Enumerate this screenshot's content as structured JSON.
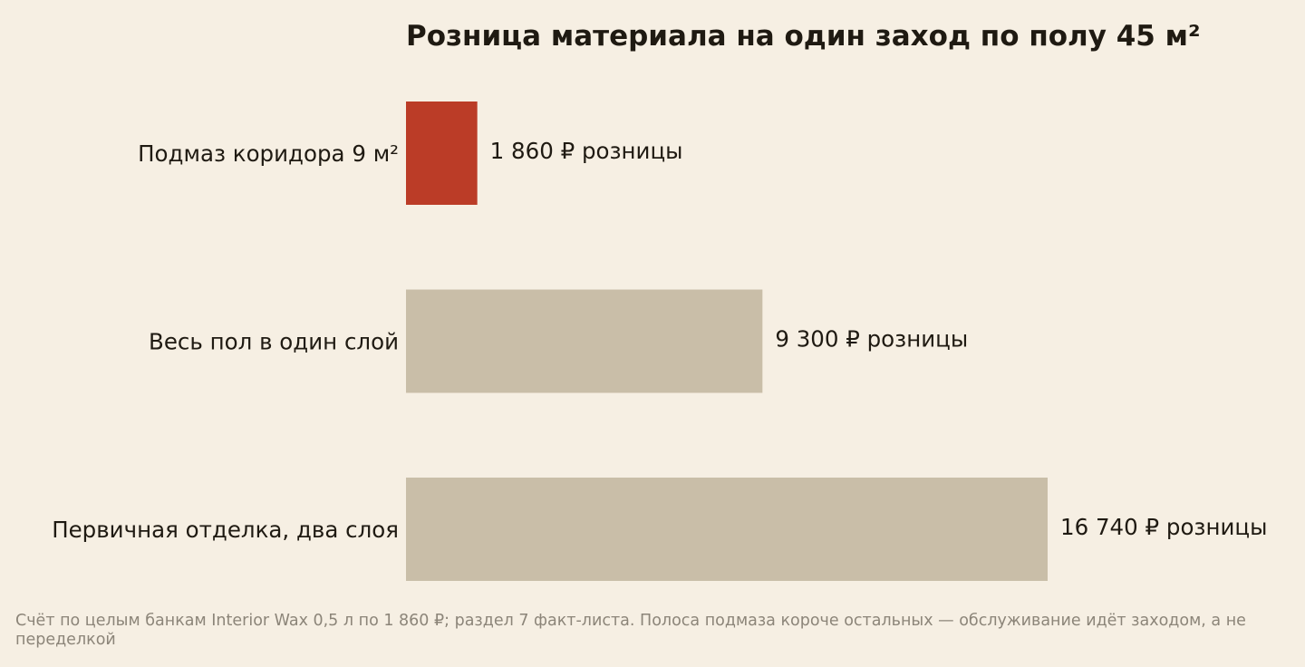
{
  "chart_data": {
    "type": "bar",
    "orientation": "horizontal",
    "title": "Розница материала на один заход по полу 45 м²",
    "categories": [
      "Подмаз коридора 9 м²",
      "Весь пол в один слой",
      "Первичная отделка, два слоя"
    ],
    "values": [
      1860,
      9300,
      16740
    ],
    "value_labels": [
      "1 860 ₽ розницы",
      "9 300 ₽ розницы",
      "16 740 ₽ розницы"
    ],
    "bar_colors": [
      "#bb3c27",
      "#c9bea8",
      "#c9bea8"
    ],
    "xlim": [
      0,
      16740
    ],
    "grid": false,
    "xlabel": "",
    "ylabel": ""
  },
  "footnote": "Счёт по целым банкам Interior Wax 0,5 л по 1 860 ₽; раздел 7 факт-листа. Полоса подмаза короче остальных — обслуживание идёт заходом, а не переделкой",
  "colors": {
    "background": "#f6efe3",
    "text": "#1f1a12",
    "footnote": "#8c8579",
    "highlight": "#bb3c27",
    "muted_bar": "#c9bea8"
  }
}
